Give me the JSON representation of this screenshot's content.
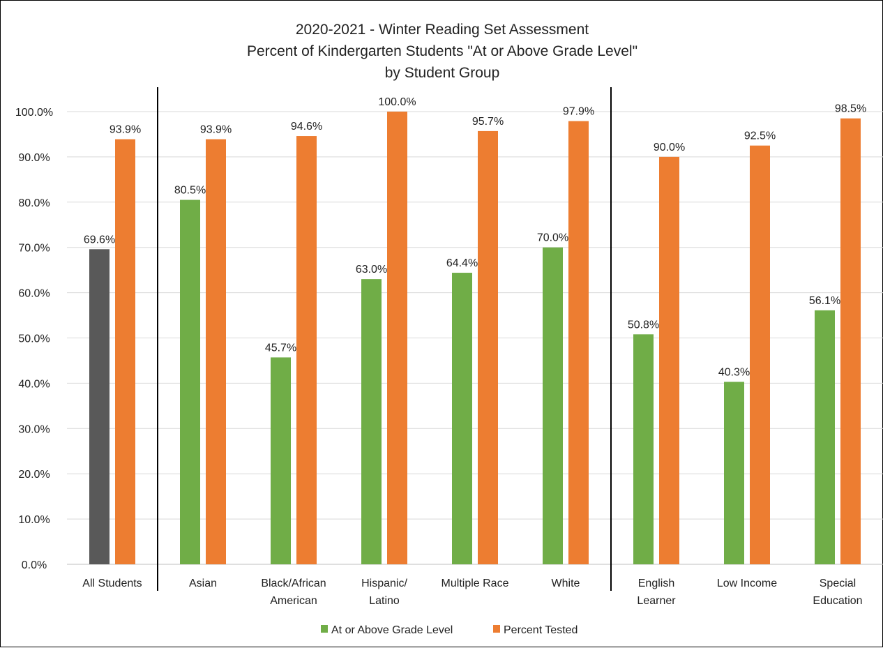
{
  "chart_data": {
    "type": "bar",
    "title_lines": [
      "2020-2021 - Winter Reading Set Assessment",
      "Percent of Kindergarten Students \"At or Above Grade Level\"",
      "by Student Group"
    ],
    "categories": [
      [
        "All Students"
      ],
      [
        "Asian"
      ],
      [
        "Black/African",
        "American"
      ],
      [
        "Hispanic/",
        "Latino"
      ],
      [
        "Multiple Race"
      ],
      [
        "White"
      ],
      [
        "English",
        "Learner"
      ],
      [
        "Low Income"
      ],
      [
        "Special",
        "Education"
      ]
    ],
    "series": [
      {
        "name": "At or Above Grade Level",
        "values": [
          69.6,
          80.5,
          45.7,
          63.0,
          64.4,
          70.0,
          50.8,
          40.3,
          56.1
        ],
        "labels": [
          "69.6%",
          "80.5%",
          "45.7%",
          "63.0%",
          "64.4%",
          "70.0%",
          "50.8%",
          "40.3%",
          "56.1%"
        ]
      },
      {
        "name": "Percent Tested",
        "values": [
          93.9,
          93.9,
          94.6,
          100.0,
          95.7,
          97.9,
          90.0,
          92.5,
          98.5
        ],
        "labels": [
          "93.9%",
          "93.9%",
          "94.6%",
          "100.0%",
          "95.7%",
          "97.9%",
          "90.0%",
          "92.5%",
          "98.5%"
        ]
      }
    ],
    "y_ticks": [
      "0.0%",
      "10.0%",
      "20.0%",
      "30.0%",
      "40.0%",
      "50.0%",
      "60.0%",
      "70.0%",
      "80.0%",
      "90.0%",
      "100.0%"
    ],
    "ylim": [
      0,
      100
    ],
    "grid": true,
    "legend_position": "bottom",
    "group_separators_after": [
      0,
      5
    ],
    "colors": {
      "at_or_above": "#70ad47",
      "at_or_above_all_students": "#595959",
      "percent_tested": "#ed7d31",
      "grid": "#d9d9d9",
      "text": "#222222"
    }
  }
}
